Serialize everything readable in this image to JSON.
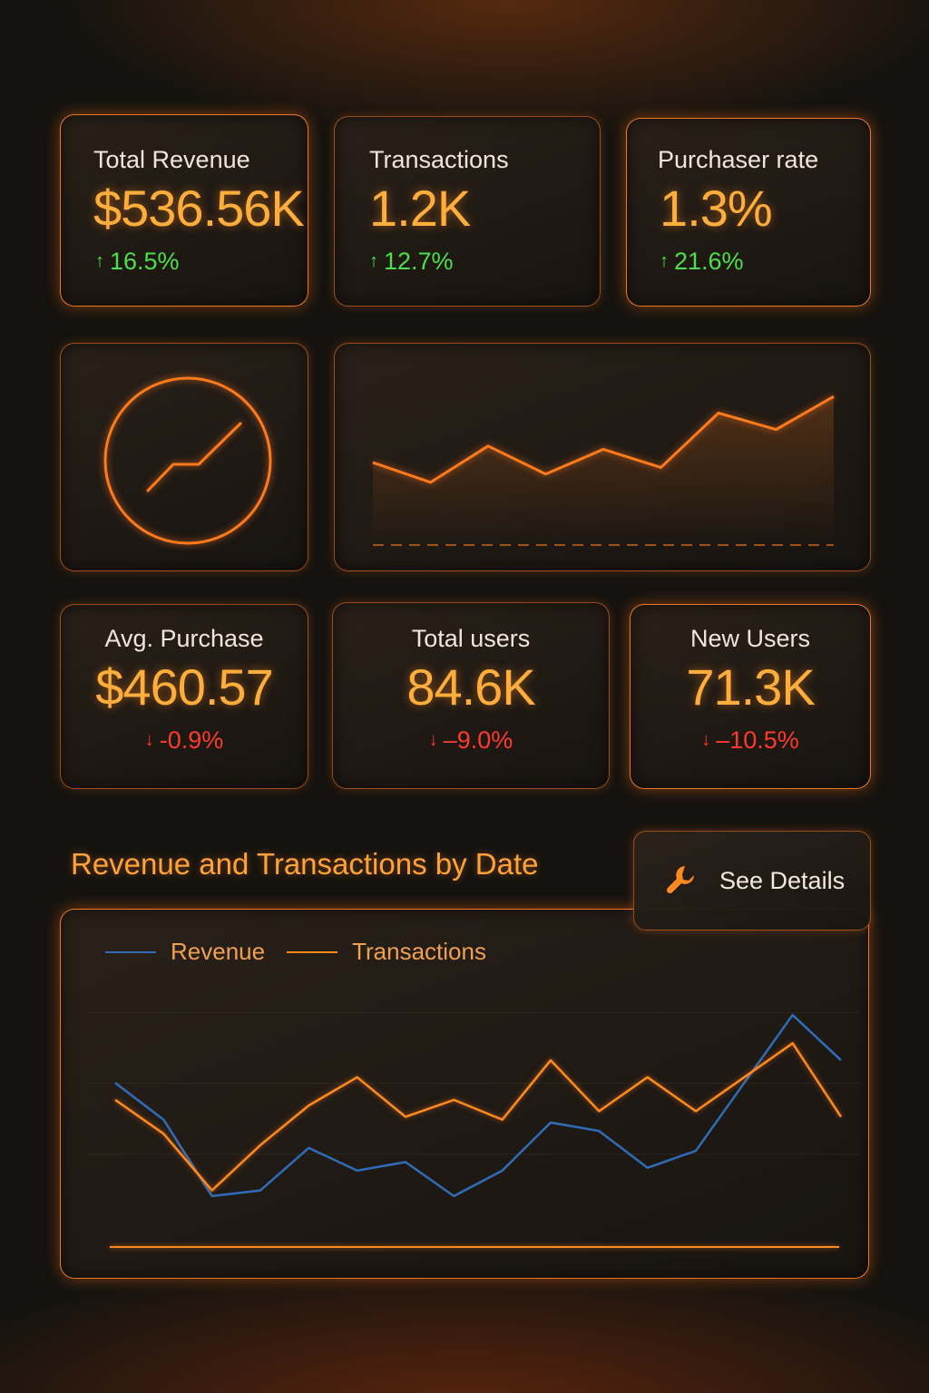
{
  "kpis_top": [
    {
      "label": "Total Revenue",
      "value": "$536.56K",
      "delta": "16.5%",
      "trend": "up"
    },
    {
      "label": "Transactions",
      "value": "1.2K",
      "delta": "12.7%",
      "trend": "up"
    },
    {
      "label": "Purchaser rate",
      "value": "1.3%",
      "delta": "21.6%",
      "trend": "up"
    }
  ],
  "kpis_bottom": [
    {
      "label": "Avg. Purchase",
      "value": "$460.57",
      "delta": "-0.9%",
      "trend": "down"
    },
    {
      "label": "Total users",
      "value": "84.6K",
      "delta": "–9.0%",
      "trend": "down"
    },
    {
      "label": "New Users",
      "value": "71.3K",
      "delta": "–10.5%",
      "trend": "down"
    }
  ],
  "icons": {
    "up": "arrow-up-icon",
    "down": "arrow-down-icon",
    "gauge": "gauge-trend-icon",
    "details": "wrench-icon"
  },
  "colors": {
    "accent": "#ff8a1e",
    "value": "#ffae3c",
    "positive": "#4ce048",
    "negative": "#ff3a2a",
    "revenue_line": "#2f6db8",
    "transactions_line": "#ff8a1e"
  },
  "section": {
    "title": "Revenue and Transactions by Date",
    "details_button": "See Details"
  },
  "chart_data": [
    {
      "type": "area",
      "series": [
        {
          "values": [
            50,
            38,
            60,
            43,
            58,
            47,
            80,
            70,
            90
          ]
        }
      ],
      "ylim": [
        0,
        100
      ],
      "grid": false
    },
    {
      "type": "line",
      "series": [
        {
          "name": "Revenue",
          "values": [
            58,
            45,
            18,
            20,
            35,
            27,
            30,
            18,
            27,
            44,
            41,
            28,
            34,
            58,
            82,
            66
          ]
        },
        {
          "name": "Transactions",
          "values": [
            52,
            40,
            20,
            36,
            50,
            60,
            46,
            52,
            45,
            66,
            48,
            60,
            48,
            60,
            72,
            46
          ]
        }
      ],
      "ylim": [
        0,
        100
      ],
      "legend": "top-left",
      "grid": true
    }
  ]
}
